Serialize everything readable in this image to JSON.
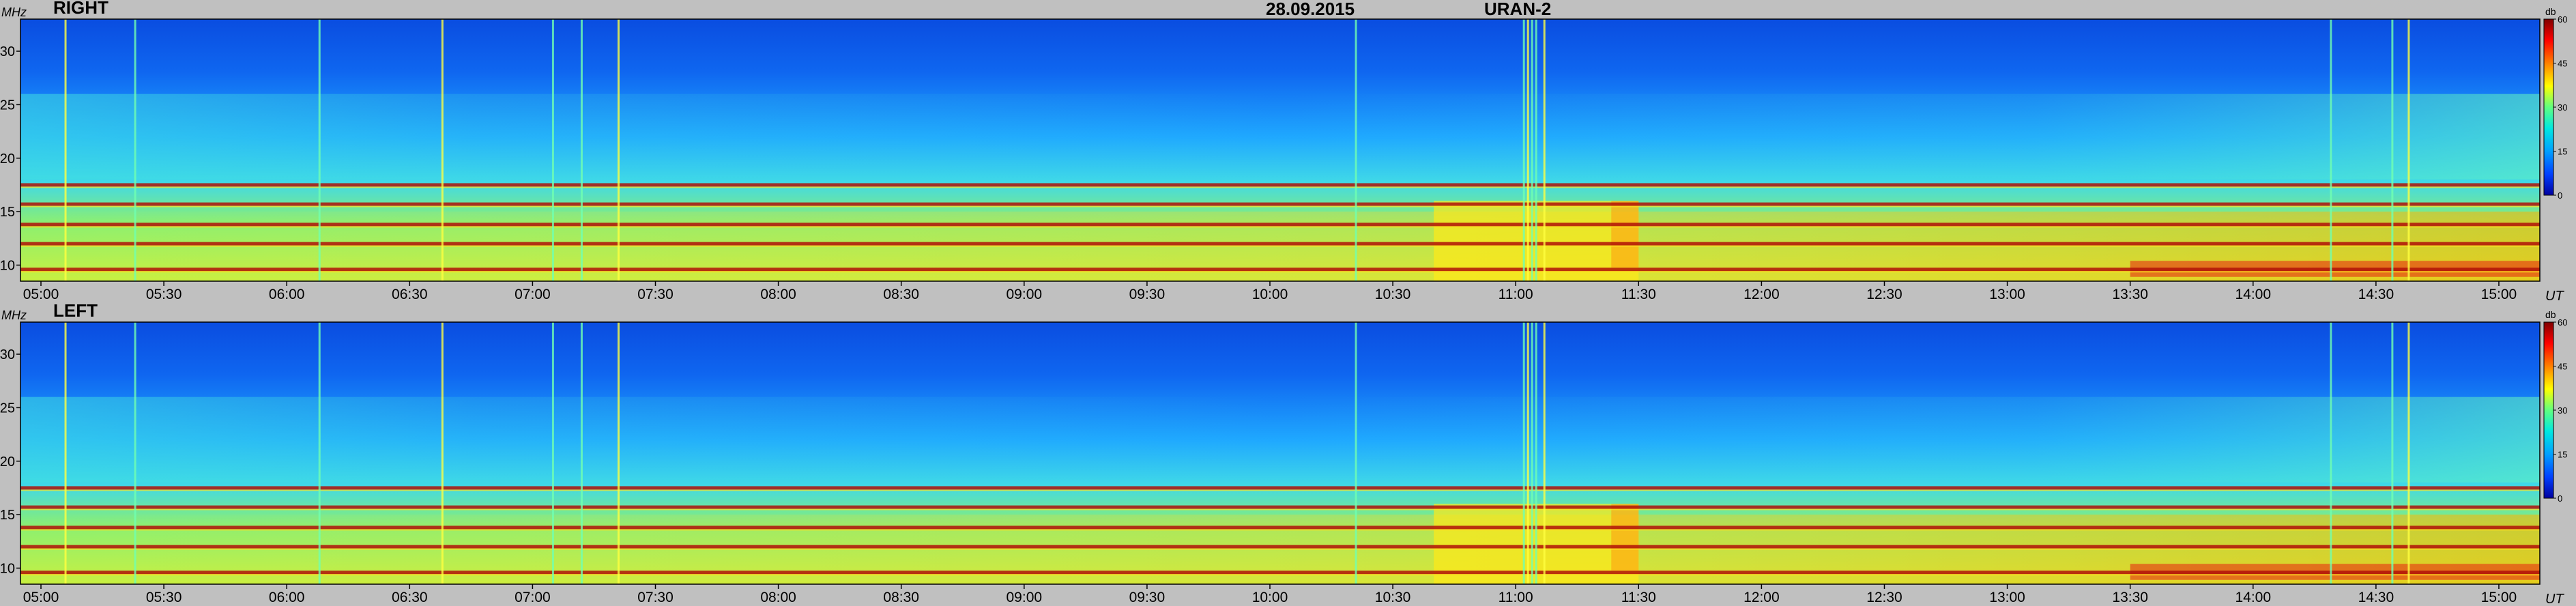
{
  "title": {
    "date": "28.09.2015",
    "instrument": "URAN-2"
  },
  "chart_data": [
    {
      "type": "heatmap",
      "panel_label": "RIGHT",
      "ylabel": "MHz",
      "xlabel": "UT",
      "colorbar_label": "db",
      "ylim": [
        8.5,
        33
      ],
      "yticks": [
        10,
        15,
        20,
        25,
        30
      ],
      "xlim": [
        "04:55",
        "15:10"
      ],
      "xticks": [
        "05:00",
        "05:30",
        "06:00",
        "06:30",
        "07:00",
        "07:30",
        "08:00",
        "08:30",
        "09:00",
        "09:30",
        "10:00",
        "10:30",
        "11:00",
        "11:30",
        "12:00",
        "12:30",
        "13:00",
        "13:30",
        "14:00",
        "14:30",
        "15:00"
      ],
      "colorbar": {
        "range": [
          0,
          60
        ],
        "ticks": [
          0,
          15,
          30,
          45,
          60
        ]
      },
      "horizontal_interference_bands_mhz": [
        9.6,
        12.0,
        13.8,
        15.7,
        17.5
      ],
      "vertical_bursts_ut": [
        "05:06",
        "05:23",
        "06:08",
        "06:38",
        "07:05",
        "07:12",
        "07:21",
        "10:21",
        "11:02",
        "11:03",
        "11:04",
        "11:05",
        "11:07",
        "14:19",
        "14:34",
        "14:38"
      ],
      "enhanced_region_ut": [
        "10:40",
        "11:30"
      ]
    },
    {
      "type": "heatmap",
      "panel_label": "LEFT",
      "ylabel": "MHz",
      "xlabel": "UT",
      "colorbar_label": "db",
      "ylim": [
        8.5,
        33
      ],
      "yticks": [
        10,
        15,
        20,
        25,
        30
      ],
      "xlim": [
        "04:55",
        "15:10"
      ],
      "xticks": [
        "05:00",
        "05:30",
        "06:00",
        "06:30",
        "07:00",
        "07:30",
        "08:00",
        "08:30",
        "09:00",
        "09:30",
        "10:00",
        "10:30",
        "11:00",
        "11:30",
        "12:00",
        "12:30",
        "13:00",
        "13:30",
        "14:00",
        "14:30",
        "15:00"
      ],
      "colorbar": {
        "range": [
          0,
          60
        ],
        "ticks": [
          0,
          15,
          30,
          45,
          60
        ]
      },
      "horizontal_interference_bands_mhz": [
        9.6,
        12.0,
        13.8,
        15.7,
        17.5
      ],
      "vertical_bursts_ut": [
        "05:06",
        "05:23",
        "06:08",
        "06:38",
        "07:05",
        "07:12",
        "07:21",
        "10:21",
        "11:02",
        "11:03",
        "11:04",
        "11:05",
        "11:07",
        "14:19",
        "14:34",
        "14:38"
      ],
      "enhanced_region_ut": [
        "10:40",
        "11:30"
      ]
    }
  ],
  "colors": {
    "background": "#c0c0c0",
    "scale": [
      "#0000a0",
      "#0040ff",
      "#00a0ff",
      "#00e8e0",
      "#60ff80",
      "#ffff00",
      "#ff8000",
      "#ff0000",
      "#800000"
    ]
  }
}
